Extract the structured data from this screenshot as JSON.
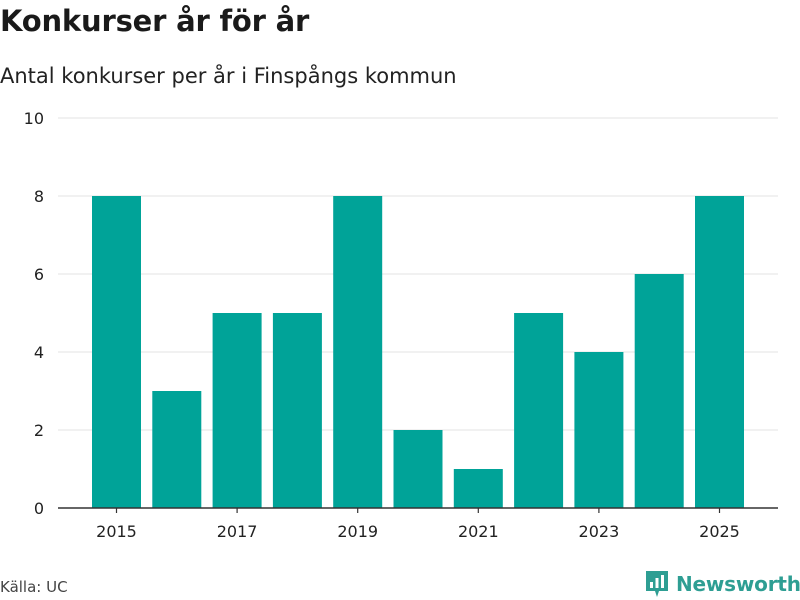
{
  "chart_data": {
    "type": "bar",
    "title": "Konkurser år för år",
    "subtitle": "Antal konkurser per år i Finspångs kommun",
    "categories": [
      "2015",
      "2016",
      "2017",
      "2018",
      "2019",
      "2020",
      "2021",
      "2022",
      "2023",
      "2024",
      "2025"
    ],
    "values": [
      8,
      3,
      5,
      5,
      8,
      2,
      1,
      5,
      4,
      6,
      8
    ],
    "x_tick_labels": [
      "2015",
      "2017",
      "2019",
      "2021",
      "2023",
      "2025"
    ],
    "y_ticks": [
      0,
      2,
      4,
      6,
      8,
      10
    ],
    "ylim": [
      0,
      10
    ],
    "xlabel": "",
    "ylabel": "",
    "grid": true,
    "bar_color": "#00a398"
  },
  "source": "Källa: UC",
  "brand": {
    "name": "Newsworthy",
    "icon": "newsworthy-logo-icon",
    "color": "#2e9e93"
  }
}
